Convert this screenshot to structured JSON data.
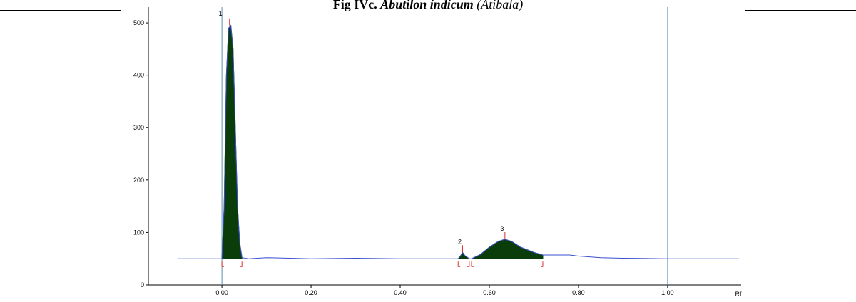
{
  "chart_data": {
    "type": "line",
    "title": "Fig IVc.",
    "title_species": "Abutilon indicum",
    "title_common": "(Atibala)",
    "xlabel": "Rf",
    "xlim": [
      -0.165,
      1.165
    ],
    "ylim": [
      0,
      530
    ],
    "xticks": [
      {
        "value": 0,
        "label": "0.00"
      },
      {
        "value": 0.2,
        "label": "0.20"
      },
      {
        "value": 0.4,
        "label": "0.40"
      },
      {
        "value": 0.6,
        "label": "0.60"
      },
      {
        "value": 0.8,
        "label": "0.80"
      },
      {
        "value": 1,
        "label": "1.00"
      }
    ],
    "yticks": [
      0,
      100,
      200,
      300,
      400,
      500
    ],
    "front_lines": [
      0,
      1
    ],
    "series": [
      {
        "color": "#3a4fcf",
        "x": [
          -0.1,
          0,
          0.005,
          0.01,
          0.015,
          0.02,
          0.025,
          0.03,
          0.035,
          0.04,
          0.045,
          0.06,
          0.1,
          0.2,
          0.3,
          0.4,
          0.5,
          0.53,
          0.535,
          0.54,
          0.545,
          0.555,
          0.56,
          0.58,
          0.6,
          0.62,
          0.635,
          0.65,
          0.67,
          0.7,
          0.72,
          0.76,
          0.78,
          0.8,
          0.85,
          0.9,
          1.0,
          1.16
        ],
        "values": [
          50,
          50,
          150,
          400,
          490,
          495,
          450,
          300,
          150,
          80,
          52,
          50,
          52,
          50,
          51,
          50,
          50,
          50,
          55,
          62,
          56,
          50,
          50,
          58,
          72,
          83,
          87,
          83,
          72,
          62,
          57,
          57,
          57,
          55,
          52,
          51,
          50,
          50
        ]
      }
    ],
    "fill_color": "#0b3d0b",
    "peaks": [
      {
        "label": "1",
        "start": 0.0,
        "apex": 0.017,
        "end": 0.045,
        "height": 495
      },
      {
        "label": "2",
        "start": 0.53,
        "apex": 0.54,
        "end": 0.555,
        "height": 62
      },
      {
        "label": "3",
        "start": 0.56,
        "apex": 0.635,
        "end": 0.72,
        "height": 87
      }
    ]
  }
}
